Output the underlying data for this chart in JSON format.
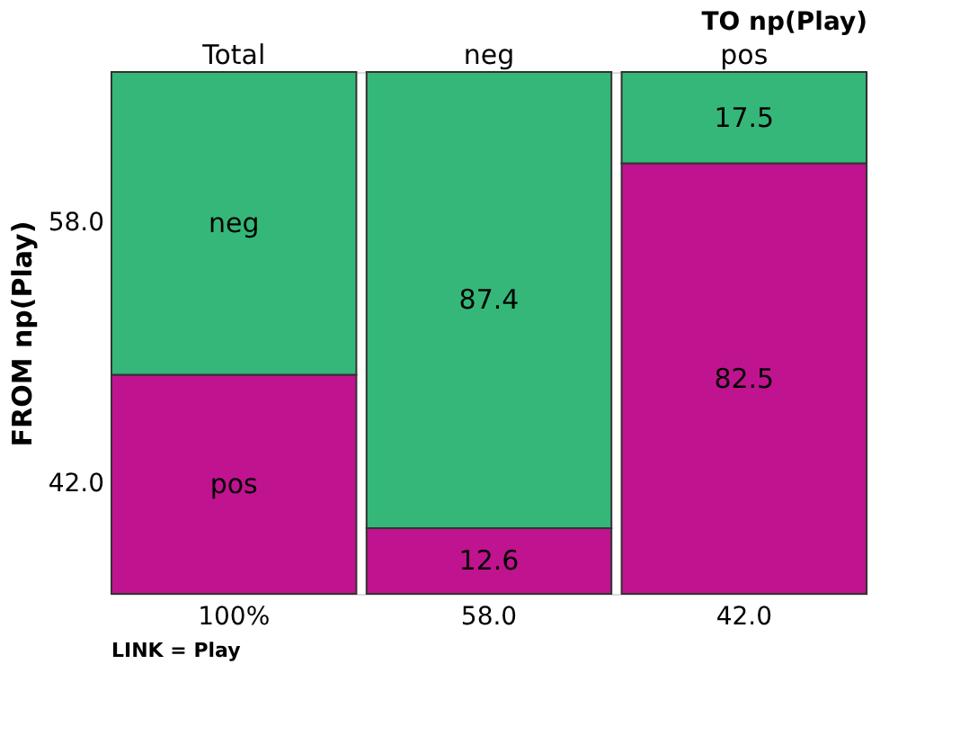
{
  "chart_data": {
    "type": "bar",
    "stacked": true,
    "categories": [
      "Total",
      "neg",
      "pos"
    ],
    "series": [
      {
        "name": "pos",
        "color": "#c0138f",
        "values": [
          42.0,
          12.6,
          82.5
        ],
        "value_labels": [
          null,
          "12.6",
          "82.5"
        ]
      },
      {
        "name": "neg",
        "color": "#35b77a",
        "values": [
          58.0,
          87.4,
          17.5
        ],
        "value_labels": [
          null,
          "87.4",
          "17.5"
        ]
      }
    ],
    "xlabel": "TO np(Play)",
    "ylabel": "FROM np(Play)",
    "annotations": [
      "42.0",
      "58.0",
      "100%",
      "58.0",
      "42.0",
      "LINK = Play"
    ],
    "legend": false
  }
}
